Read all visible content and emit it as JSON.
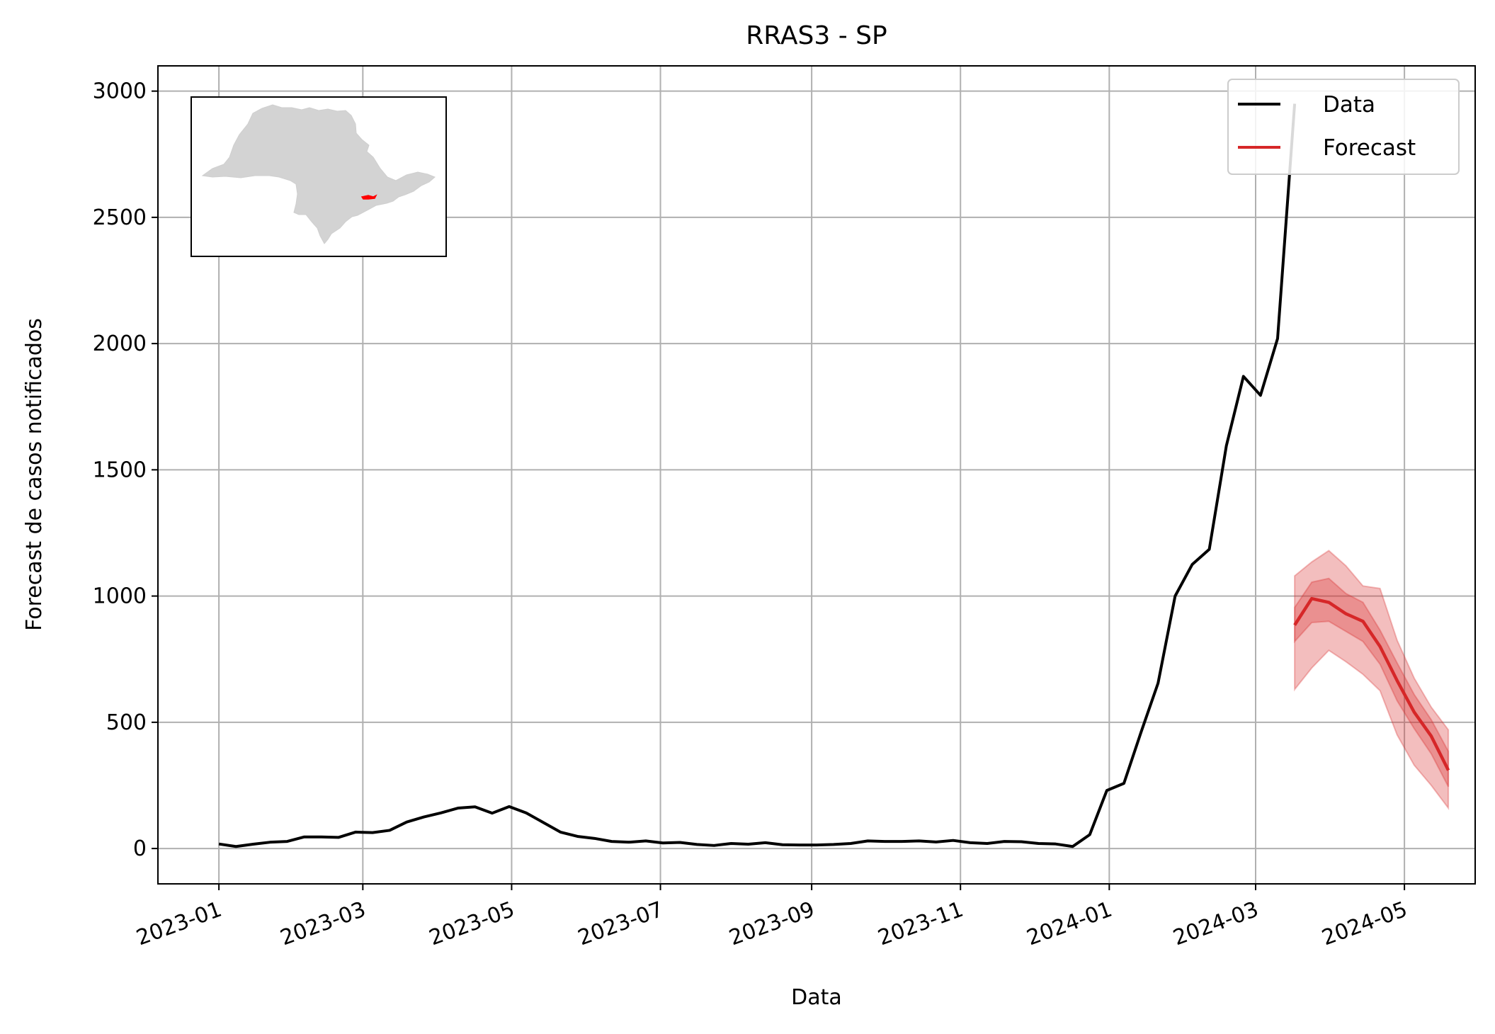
{
  "chart_data": {
    "type": "line",
    "title": "RRAS3 - SP",
    "xlabel": "Data",
    "ylabel": "Forecast de casos notificados",
    "x_ticks": [
      "2023-01",
      "2023-03",
      "2023-05",
      "2023-07",
      "2023-09",
      "2023-11",
      "2024-01",
      "2024-03",
      "2024-05"
    ],
    "y_ticks": [
      0,
      500,
      1000,
      1500,
      2000,
      2500,
      3000
    ],
    "xlim": [
      "2022-12-07",
      "2024-05-30"
    ],
    "ylim": [
      -140,
      3100
    ],
    "grid": true,
    "legend_position": "top-right",
    "legend": [
      "Data",
      "Forecast"
    ],
    "colors": {
      "data": "#000000",
      "forecast": "#d62728",
      "band": "#d62728",
      "map": "#d3d3d3",
      "region": "#ff0000"
    },
    "series": [
      {
        "name": "Data",
        "x": [
          "2023-01-01",
          "2023-01-08",
          "2023-01-15",
          "2023-01-22",
          "2023-01-29",
          "2023-02-05",
          "2023-02-12",
          "2023-02-19",
          "2023-02-26",
          "2023-03-05",
          "2023-03-12",
          "2023-03-19",
          "2023-03-26",
          "2023-04-02",
          "2023-04-09",
          "2023-04-16",
          "2023-04-23",
          "2023-04-30",
          "2023-05-07",
          "2023-05-14",
          "2023-05-21",
          "2023-05-28",
          "2023-06-04",
          "2023-06-11",
          "2023-06-18",
          "2023-06-25",
          "2023-07-02",
          "2023-07-09",
          "2023-07-16",
          "2023-07-23",
          "2023-07-30",
          "2023-08-06",
          "2023-08-13",
          "2023-08-20",
          "2023-08-27",
          "2023-09-03",
          "2023-09-10",
          "2023-09-17",
          "2023-09-24",
          "2023-10-01",
          "2023-10-08",
          "2023-10-15",
          "2023-10-22",
          "2023-10-29",
          "2023-11-05",
          "2023-11-12",
          "2023-11-19",
          "2023-11-26",
          "2023-12-03",
          "2023-12-10",
          "2023-12-17",
          "2023-12-24",
          "2023-12-31",
          "2024-01-07",
          "2024-01-14",
          "2024-01-21",
          "2024-01-28",
          "2024-02-04",
          "2024-02-11",
          "2024-02-18",
          "2024-02-25",
          "2024-03-03",
          "2024-03-10",
          "2024-03-17"
        ],
        "y": [
          18,
          8,
          17,
          25,
          28,
          46,
          46,
          44,
          65,
          63,
          72,
          105,
          125,
          141,
          160,
          165,
          140,
          166,
          141,
          103,
          65,
          48,
          40,
          28,
          25,
          30,
          22,
          24,
          16,
          12,
          20,
          17,
          23,
          15,
          14,
          14,
          16,
          20,
          30,
          28,
          28,
          30,
          26,
          32,
          23,
          20,
          28,
          27,
          20,
          18,
          8,
          55,
          230,
          258,
          460,
          655,
          1000,
          1125,
          1185,
          1595,
          1870,
          1795,
          2020,
          2950
        ]
      },
      {
        "name": "Forecast",
        "x": [
          "2024-03-17",
          "2024-03-24",
          "2024-03-31",
          "2024-04-07",
          "2024-04-14",
          "2024-04-21",
          "2024-04-28",
          "2024-05-05",
          "2024-05-12",
          "2024-05-19"
        ],
        "y": [
          885,
          990,
          975,
          930,
          900,
          800,
          665,
          540,
          445,
          310
        ],
        "lower_50": [
          820,
          895,
          900,
          860,
          820,
          730,
          585,
          475,
          375,
          245
        ],
        "upper_50": [
          955,
          1055,
          1070,
          1010,
          975,
          865,
          735,
          610,
          510,
          385
        ],
        "lower_90": [
          630,
          715,
          785,
          740,
          690,
          625,
          450,
          330,
          250,
          160
        ],
        "upper_90": [
          1080,
          1135,
          1180,
          1120,
          1040,
          1030,
          825,
          675,
          560,
          470
        ]
      }
    ]
  }
}
